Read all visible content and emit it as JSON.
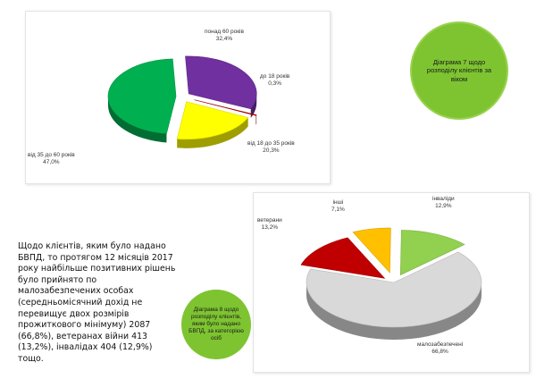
{
  "chart_data": [
    {
      "type": "pie",
      "title": "",
      "slices": [
        {
          "label": "понад 60 років",
          "value": 32.4,
          "value_label": "32,4%",
          "color": "#7030a0"
        },
        {
          "label": "до 18 років",
          "value": 0.3,
          "value_label": "0,3%",
          "color": "#c00000"
        },
        {
          "label": "від 18 до 35 років",
          "value": 20.3,
          "value_label": "20,3%",
          "color": "#ffff00"
        },
        {
          "label": "від 35 до 60 років",
          "value": 47.0,
          "value_label": "47,0%",
          "color": "#00b050"
        }
      ]
    },
    {
      "type": "pie",
      "title": "",
      "slices": [
        {
          "label": "інваліди",
          "value": 12.9,
          "value_label": "12,9%",
          "color": "#92d050"
        },
        {
          "label": "малозабезпечені",
          "value": 66.8,
          "value_label": "66,8%",
          "color": "#d9d9d9"
        },
        {
          "label": "ветерани",
          "value": 13.2,
          "value_label": "13,2%",
          "color": "#c00000"
        },
        {
          "label": "інші",
          "value": 7.1,
          "value_label": "7,1%",
          "color": "#ffc000"
        }
      ]
    }
  ],
  "captions": {
    "chart1": "Діаграма 7 щодо розподілу клієнтів за віком",
    "chart2": "Діаграма 8 щодо розподілу клієнтів, яким було надано БВПД, за категорією осіб"
  },
  "summary_text": "Щодо клієнтів, яким було надано БВПД, то протягом 12 місяців 2017 року найбільше позитивних рішень було прийнято по малозабезпечених особах (середньомісячний дохід не перевищує двох розмірів прожиткового мінімуму) 2087 (66,8%), ветеранах війни 413 (13,2%), інвалідах 404 (12,9%) тощо."
}
